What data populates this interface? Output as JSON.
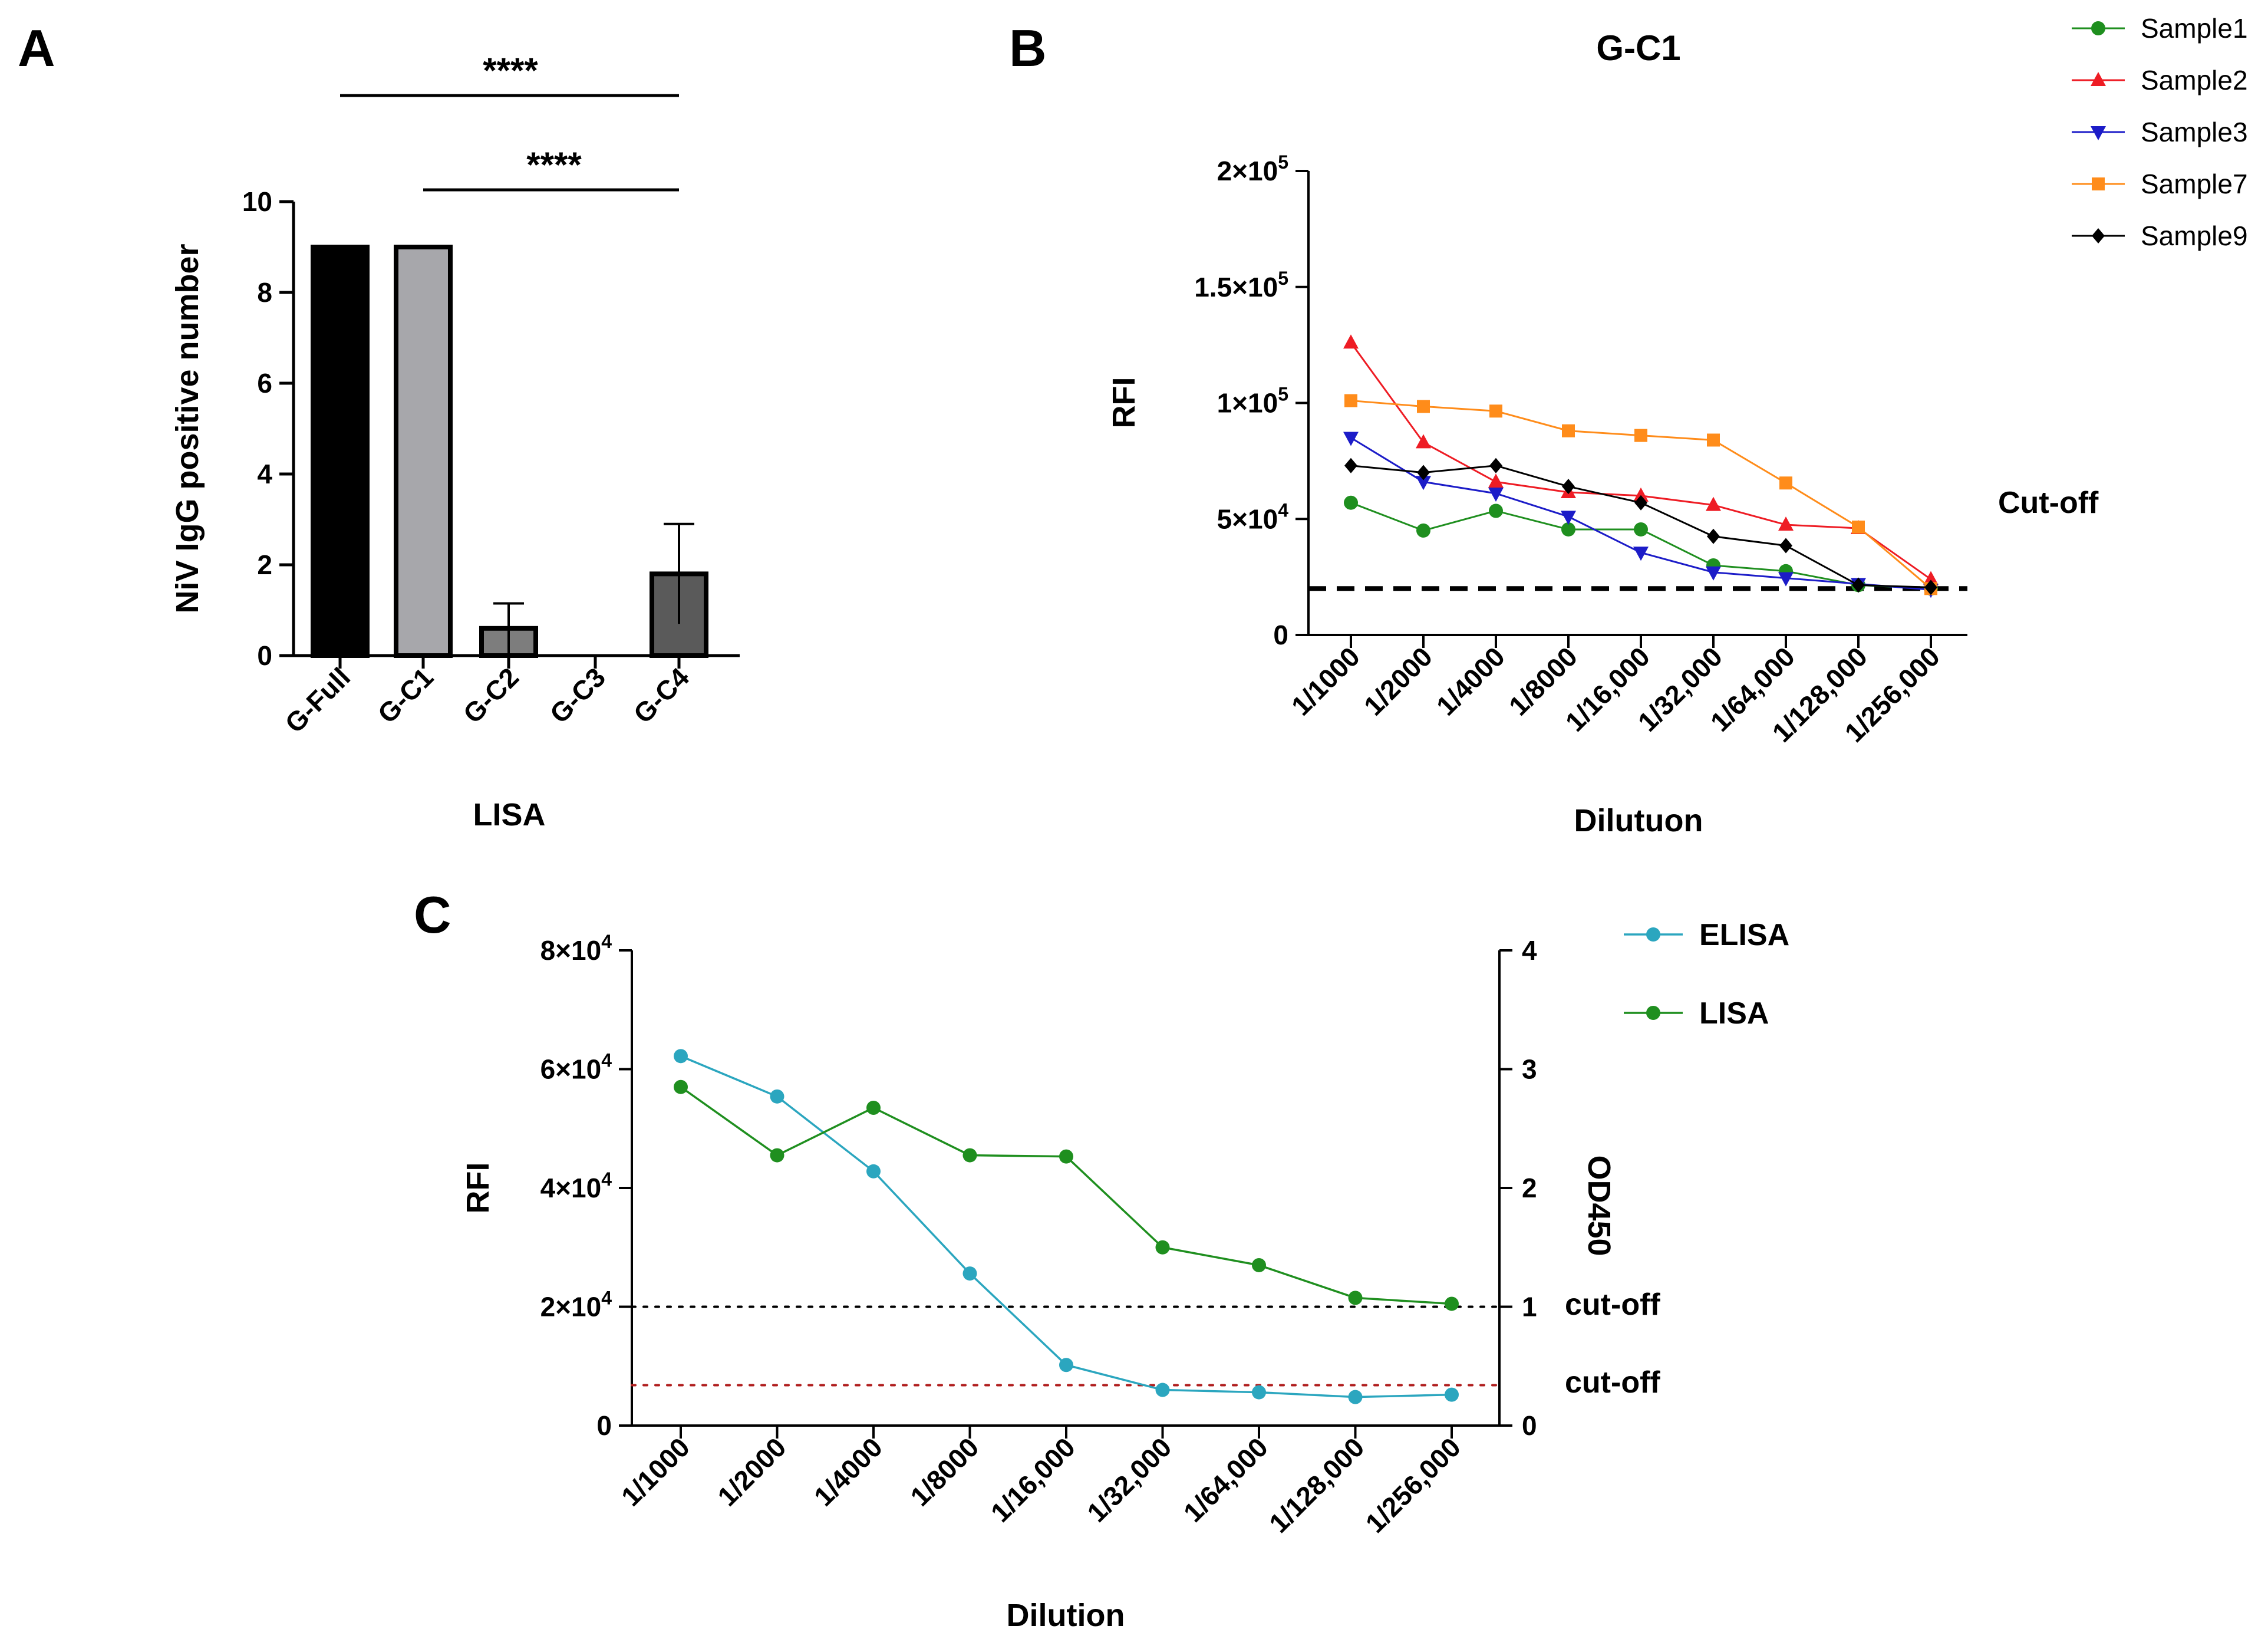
{
  "panels": {
    "a": {
      "letter": "A"
    },
    "b": {
      "letter": "B"
    },
    "c": {
      "letter": "C"
    }
  },
  "chart_data": [
    {
      "id": "A",
      "type": "bar",
      "title": "",
      "categories": [
        "G-Full",
        "G-C1",
        "G-C2",
        "G-C3",
        "G-C4"
      ],
      "values": [
        9,
        9,
        0.6,
        0,
        1.8
      ],
      "errors": [
        0,
        0,
        0.55,
        0,
        1.1
      ],
      "bar_colors": [
        "#000000",
        "#a7a7ab",
        "#7d7d7d",
        "#7d7d7d",
        "#5a5a5a"
      ],
      "xlabel": "LISA",
      "ylabel": "NiV IgG  positive number",
      "ylim": [
        0,
        10
      ],
      "yticks": [
        0,
        2,
        4,
        6,
        8,
        10
      ],
      "significance": [
        {
          "from": "G-Full",
          "to": "G-C4",
          "label": "****"
        },
        {
          "from": "G-C1",
          "to": "G-C4",
          "label": "****"
        }
      ]
    },
    {
      "id": "B",
      "type": "line",
      "title": "G-C1",
      "categories": [
        "1/1000",
        "1/2000",
        "1/4000",
        "1/8000",
        "1/16,000",
        "1/32,000",
        "1/64,000",
        "1/128,000",
        "1/256,000"
      ],
      "series": [
        {
          "name": "Sample1",
          "color": "#1f8f1f",
          "marker": "circle",
          "values": [
            57000,
            45000,
            53500,
            45500,
            45500,
            30000,
            27500,
            21500,
            20000
          ]
        },
        {
          "name": "Sample2",
          "color": "#ee1c24",
          "marker": "triangle-up",
          "values": [
            126000,
            83000,
            66000,
            61500,
            60000,
            56000,
            47500,
            46000,
            24000
          ]
        },
        {
          "name": "Sample3",
          "color": "#1c1cc8",
          "marker": "triangle-down",
          "values": [
            85000,
            66000,
            61000,
            51000,
            35500,
            27000,
            24500,
            22000,
            19500
          ]
        },
        {
          "name": "Sample7",
          "color": "#ff8c1a",
          "marker": "square",
          "values": [
            101000,
            98500,
            96500,
            88000,
            86000,
            84000,
            65500,
            46500,
            20000
          ]
        },
        {
          "name": "Sample9",
          "color": "#000000",
          "marker": "diamond",
          "values": [
            73000,
            70000,
            73000,
            64000,
            57000,
            42500,
            38500,
            21500,
            20500
          ]
        }
      ],
      "cutoff": {
        "value": 20000,
        "label": "Cut-off"
      },
      "xlabel": "Dilutuon",
      "ylabel": "RFI",
      "ylim": [
        0,
        200000
      ],
      "yticks": [
        {
          "value": 0,
          "mantissa": "0",
          "exp": ""
        },
        {
          "value": 50000,
          "mantissa": "5×10",
          "exp": "4"
        },
        {
          "value": 100000,
          "mantissa": "1×10",
          "exp": "5"
        },
        {
          "value": 150000,
          "mantissa": "1.5×10",
          "exp": "5"
        },
        {
          "value": 200000,
          "mantissa": "2×10",
          "exp": "5"
        }
      ]
    },
    {
      "id": "C",
      "type": "line",
      "title": "",
      "categories": [
        "1/1000",
        "1/2000",
        "1/4000",
        "1/8000",
        "1/16,000",
        "1/32,000",
        "1/64,000",
        "1/128,000",
        "1/256,000"
      ],
      "series": [
        {
          "name": "ELISA",
          "axis": "right",
          "color": "#2ba6bf",
          "marker": "circle",
          "values": [
            3.11,
            2.77,
            2.14,
            1.28,
            0.51,
            0.3,
            0.28,
            0.24,
            0.26
          ]
        },
        {
          "name": "LISA",
          "axis": "left",
          "color": "#1f8f1f",
          "marker": "circle",
          "values": [
            57000,
            45500,
            53500,
            45500,
            45300,
            30000,
            27000,
            21500,
            20500
          ]
        }
      ],
      "cutoffs": [
        {
          "axis": "left",
          "value": 20000,
          "label": "cut-off",
          "color": "#000000"
        },
        {
          "axis": "left",
          "value": 6800,
          "label": "cut-off",
          "color": "#b01e1e"
        }
      ],
      "xlabel": "Dilution",
      "ylabel_left": "RFI",
      "ylabel_right": "OD450",
      "ylim_left": [
        0,
        80000
      ],
      "ylim_right": [
        0,
        4
      ],
      "yticks_left": [
        {
          "value": 0,
          "mantissa": "0",
          "exp": ""
        },
        {
          "value": 20000,
          "mantissa": "2×10",
          "exp": "4"
        },
        {
          "value": 40000,
          "mantissa": "4×10",
          "exp": "4"
        },
        {
          "value": 60000,
          "mantissa": "6×10",
          "exp": "4"
        },
        {
          "value": 80000,
          "mantissa": "8×10",
          "exp": "4"
        }
      ],
      "yticks_right": [
        0,
        1,
        2,
        3,
        4
      ]
    }
  ]
}
